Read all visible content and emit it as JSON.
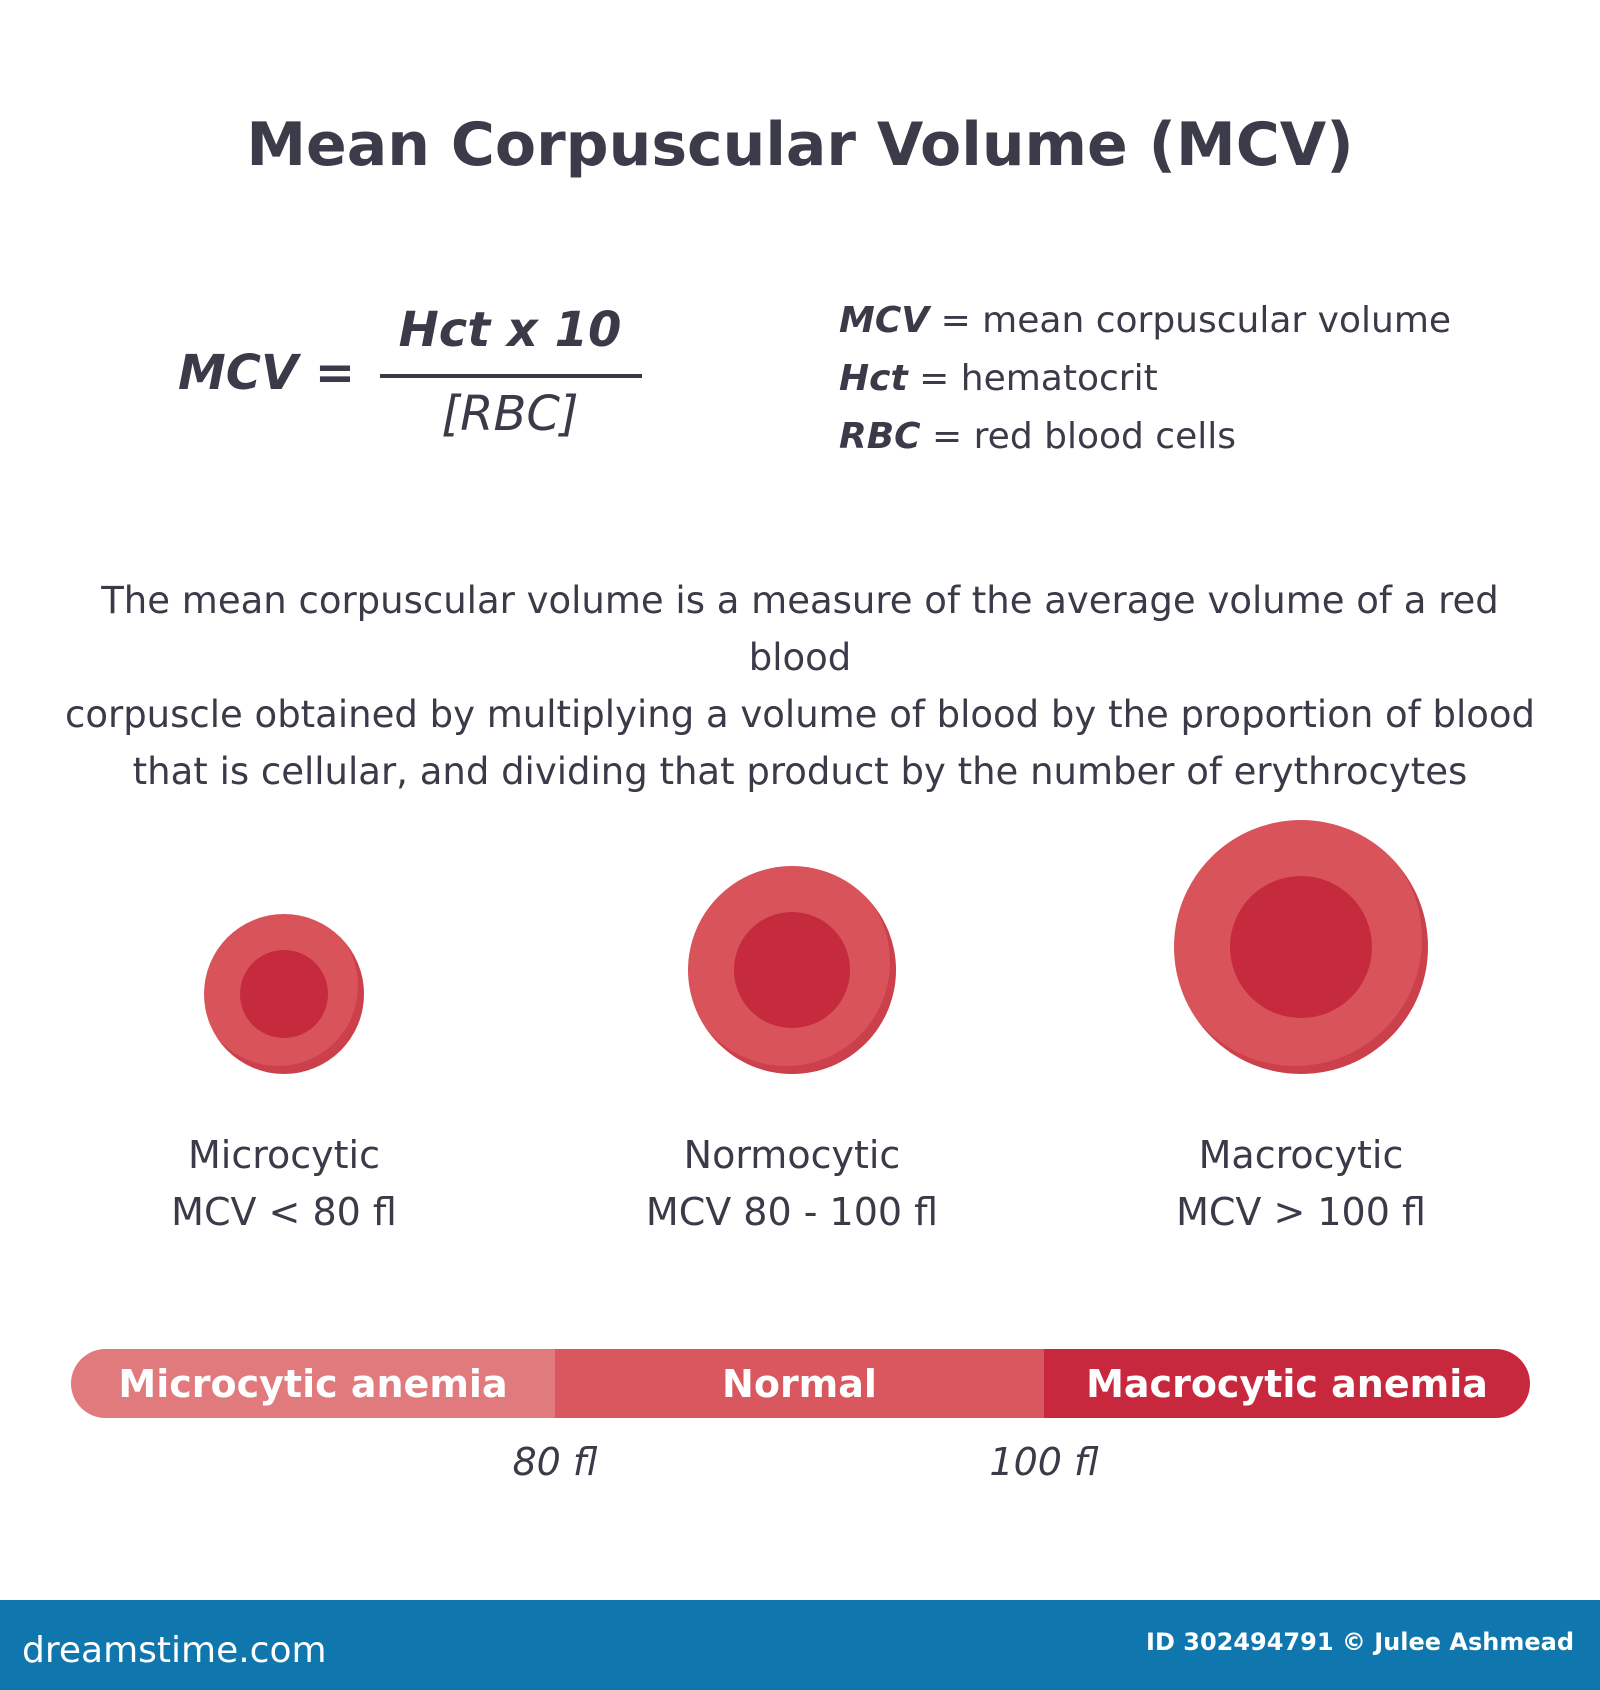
{
  "title": "Mean Corpuscular Volume (MCV)",
  "formula": {
    "lhs": "MCV =",
    "numerator": "Hct x 10",
    "denominator": "[RBC]"
  },
  "legend": [
    {
      "term": "MCV",
      "definition": "= mean corpuscular volume"
    },
    {
      "term": "Hct",
      "definition": "= hematocrit"
    },
    {
      "term": "RBC",
      "definition": "= red blood cells"
    }
  ],
  "description": [
    "The mean corpuscular volume is a measure of the average volume of a red blood",
    "corpuscle obtained by multiplying a volume of blood by the proportion of blood",
    "that is cellular, and dividing that product by the number of erythrocytes"
  ],
  "cells": [
    {
      "name": "Microcytic",
      "range": "MCV < 80 fl"
    },
    {
      "name": "Normocytic",
      "range": "MCV 80 - 100 fl"
    },
    {
      "name": "Macrocytic",
      "range": "MCV > 100 fl"
    }
  ],
  "scale": {
    "segments": [
      {
        "label": "Microcytic anemia",
        "color": "#e07a7d"
      },
      {
        "label": "Normal",
        "color": "#d9585f"
      },
      {
        "label": "Macrocytic anemia",
        "color": "#c8283d"
      }
    ],
    "ticks": [
      "80 fl",
      "100 fl"
    ]
  },
  "colors": {
    "cell_outer": "#d9535b",
    "cell_inner": "#c52a3d",
    "footer": "#1077ae"
  },
  "footer": {
    "logo": "dreamstime.com",
    "credit": "ID 302494791 © Julee Ashmead"
  }
}
